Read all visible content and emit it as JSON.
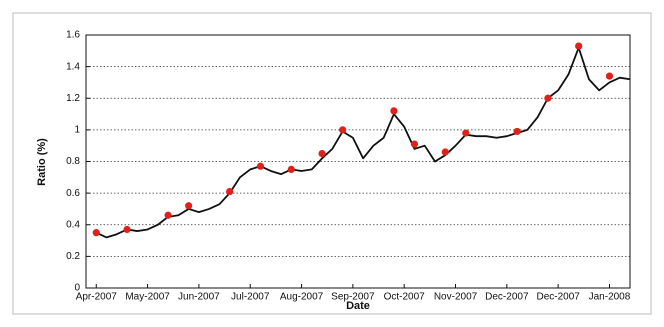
{
  "chart_data": {
    "type": "line",
    "x_label": "Date",
    "y_label": "Ratio (%)",
    "categories": [
      "Apr-2007",
      null,
      null,
      null,
      null,
      "May-2007",
      null,
      null,
      null,
      null,
      "Jun-2007",
      null,
      null,
      null,
      null,
      "Jul-2007",
      null,
      null,
      null,
      null,
      "Aug-2007",
      null,
      null,
      null,
      null,
      "Sep-2007",
      null,
      null,
      null,
      null,
      "Oct-2007",
      null,
      null,
      null,
      null,
      "Nov-2007",
      null,
      null,
      null,
      null,
      "Dec-2007",
      null,
      null,
      null,
      null,
      "Dec-2007",
      null,
      null,
      null,
      null,
      "Jan-2008",
      null,
      null
    ],
    "series": [
      {
        "color": "#111111",
        "style": "line",
        "values": [
          0.35,
          0.32,
          0.34,
          0.37,
          0.36,
          0.37,
          0.4,
          0.45,
          0.46,
          0.5,
          0.48,
          0.5,
          0.53,
          0.6,
          0.7,
          0.75,
          0.77,
          0.74,
          0.72,
          0.75,
          0.74,
          0.75,
          0.82,
          0.88,
          0.99,
          0.95,
          0.82,
          0.9,
          0.95,
          1.1,
          1.02,
          0.88,
          0.9,
          0.8,
          0.84,
          0.9,
          0.97,
          0.96,
          0.96,
          0.95,
          0.96,
          0.98,
          1.0,
          1.08,
          1.2,
          1.25,
          1.35,
          1.52,
          1.32,
          1.25,
          1.3,
          1.33,
          1.32
        ]
      },
      {
        "color": "#e0201a",
        "style": "markers",
        "values": [
          0.35,
          null,
          null,
          0.37,
          null,
          null,
          null,
          0.46,
          null,
          0.52,
          null,
          null,
          null,
          0.61,
          null,
          null,
          0.77,
          null,
          null,
          0.75,
          null,
          null,
          0.85,
          null,
          1.0,
          null,
          null,
          null,
          null,
          1.12,
          null,
          0.91,
          null,
          null,
          0.86,
          null,
          0.98,
          null,
          null,
          null,
          null,
          0.99,
          null,
          null,
          1.2,
          null,
          null,
          1.53,
          null,
          null,
          1.34,
          null,
          null
        ]
      }
    ],
    "ylim": [
      0,
      1.6
    ],
    "yticks": [
      0,
      0.2,
      0.4,
      0.6,
      0.8,
      1,
      1.2,
      1.4,
      1.6
    ],
    "grid": true
  }
}
